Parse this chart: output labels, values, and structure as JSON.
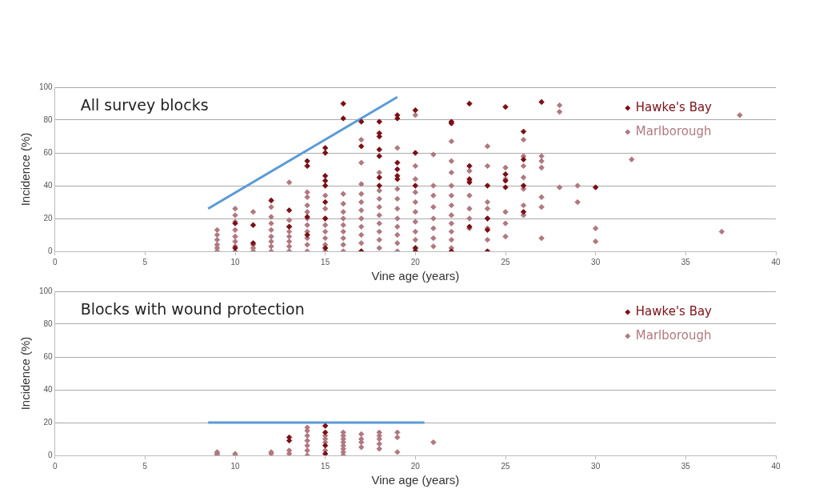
{
  "chart_data": [
    {
      "type": "scatter",
      "title": "All survey blocks",
      "xlabel": "Vine age (years)",
      "ylabel": "Incidence (%)",
      "xlim": [
        0,
        40
      ],
      "xticks": [
        0,
        5,
        10,
        15,
        20,
        25,
        30,
        35,
        40
      ],
      "ylim": [
        0,
        100
      ],
      "yticks": [
        0,
        20,
        40,
        60,
        80,
        100
      ],
      "grid": "y",
      "legend": "top right",
      "marker": "diamond",
      "series": [
        {
          "name": "Hawke's Bay",
          "color": "#7b1016",
          "x": [
            10,
            10,
            11,
            11,
            12,
            13,
            13,
            14,
            14,
            14,
            14,
            15,
            15,
            15,
            15,
            15,
            15,
            15,
            15,
            16,
            16,
            17,
            17,
            17,
            18,
            18,
            18,
            18,
            18,
            18,
            18,
            19,
            19,
            19,
            19,
            19,
            19,
            20,
            20,
            20,
            20,
            20,
            22,
            22,
            22,
            23,
            23,
            23,
            23,
            23,
            24,
            24,
            24,
            24,
            25,
            25,
            25,
            25,
            26,
            26,
            26,
            26,
            27,
            30
          ],
          "values": [
            17,
            2,
            16,
            5,
            31,
            25,
            15,
            55,
            52,
            21,
            10,
            63,
            60,
            46,
            43,
            40,
            30,
            20,
            2,
            90,
            81,
            79,
            64,
            0,
            79,
            72,
            70,
            62,
            58,
            45,
            40,
            83,
            81,
            54,
            50,
            46,
            44,
            86,
            60,
            40,
            2,
            0,
            79,
            78,
            0,
            90,
            52,
            44,
            42,
            15,
            40,
            20,
            13,
            0,
            88,
            47,
            43,
            39,
            73,
            56,
            40,
            24,
            91,
            39
          ]
        },
        {
          "name": "Marlborough",
          "color": "#b07880",
          "x": [
            9,
            9,
            9,
            9,
            9,
            9,
            10,
            10,
            10,
            10,
            10,
            10,
            10,
            10,
            11,
            11,
            11,
            11,
            12,
            12,
            12,
            12,
            12,
            12,
            12,
            12,
            13,
            13,
            13,
            13,
            13,
            13,
            13,
            13,
            14,
            14,
            14,
            14,
            14,
            14,
            14,
            14,
            14,
            14,
            15,
            15,
            15,
            15,
            15,
            15,
            15,
            15,
            16,
            16,
            16,
            16,
            16,
            16,
            16,
            16,
            16,
            17,
            17,
            17,
            17,
            17,
            17,
            17,
            17,
            17,
            17,
            17,
            18,
            18,
            18,
            18,
            18,
            18,
            18,
            18,
            18,
            19,
            19,
            19,
            19,
            19,
            19,
            19,
            19,
            19,
            20,
            20,
            20,
            20,
            20,
            20,
            20,
            20,
            20,
            20,
            21,
            21,
            21,
            21,
            21,
            21,
            21,
            21,
            22,
            22,
            22,
            22,
            22,
            22,
            22,
            22,
            22,
            22,
            22,
            23,
            23,
            23,
            23,
            23,
            23,
            24,
            24,
            24,
            24,
            24,
            24,
            24,
            25,
            25,
            25,
            25,
            25,
            26,
            26,
            26,
            26,
            26,
            26,
            26,
            27,
            27,
            27,
            27,
            27,
            27,
            28,
            28,
            28,
            29,
            29,
            30,
            30,
            32,
            37,
            38
          ],
          "values": [
            0,
            2,
            4,
            7,
            10,
            13,
            0,
            3,
            6,
            9,
            13,
            18,
            22,
            26,
            0,
            2,
            4,
            24,
            0,
            3,
            6,
            9,
            13,
            17,
            21,
            27,
            0,
            3,
            6,
            9,
            12,
            15,
            19,
            42,
            0,
            4,
            8,
            12,
            16,
            20,
            24,
            28,
            33,
            36,
            0,
            4,
            8,
            12,
            16,
            20,
            26,
            34,
            0,
            4,
            8,
            12,
            16,
            20,
            24,
            29,
            35,
            0,
            5,
            10,
            15,
            20,
            25,
            30,
            35,
            41,
            54,
            68,
            2,
            7,
            12,
            17,
            22,
            27,
            32,
            37,
            48,
            0,
            5,
            10,
            15,
            20,
            26,
            32,
            38,
            63,
            2,
            7,
            12,
            18,
            24,
            30,
            36,
            44,
            52,
            83,
            3,
            8,
            14,
            20,
            27,
            34,
            40,
            59,
            2,
            7,
            12,
            17,
            22,
            28,
            34,
            40,
            48,
            55,
            67,
            14,
            20,
            26,
            34,
            43,
            49,
            7,
            14,
            20,
            26,
            30,
            52,
            64,
            9,
            17,
            24,
            44,
            51,
            22,
            28,
            38,
            45,
            52,
            58,
            68,
            8,
            27,
            33,
            51,
            55,
            58,
            39,
            85,
            89,
            30,
            40,
            6,
            14,
            56,
            12,
            83
          ]
        },
        {
          "type": "line",
          "color": "#5b9bd5",
          "marker": "none",
          "x": [
            8.5,
            19
          ],
          "values": [
            26,
            94
          ]
        }
      ]
    },
    {
      "type": "scatter",
      "title": "Blocks with wound protection",
      "xlabel": "Vine age (years)",
      "ylabel": "Incidence (%)",
      "xlim": [
        0,
        40
      ],
      "xticks": [
        0,
        5,
        10,
        15,
        20,
        25,
        30,
        35,
        40
      ],
      "ylim": [
        0,
        100
      ],
      "yticks": [
        0,
        20,
        40,
        60,
        80,
        100
      ],
      "grid": "y",
      "legend": "top right",
      "marker": "diamond",
      "series": [
        {
          "name": "Hawke's Bay",
          "color": "#7b1016",
          "x": [
            13,
            13,
            15,
            15,
            15,
            15
          ],
          "values": [
            11,
            9,
            18,
            14,
            6,
            1
          ]
        },
        {
          "name": "Marlborough",
          "color": "#b07880",
          "x": [
            9,
            9,
            9,
            10,
            10,
            12,
            12,
            13,
            13,
            14,
            14,
            14,
            14,
            14,
            14,
            14,
            15,
            15,
            15,
            15,
            16,
            16,
            16,
            16,
            16,
            16,
            16,
            16,
            17,
            17,
            17,
            17,
            18,
            18,
            18,
            18,
            18,
            19,
            19,
            19,
            21
          ],
          "values": [
            0,
            1,
            2,
            0,
            1,
            1,
            2,
            1,
            3,
            0,
            3,
            6,
            9,
            12,
            15,
            17,
            3,
            8,
            10,
            12,
            0,
            2,
            4,
            6,
            8,
            10,
            12,
            14,
            5,
            8,
            10,
            13,
            4,
            7,
            10,
            12,
            14,
            2,
            11,
            14,
            8
          ]
        },
        {
          "type": "line",
          "color": "#5b9bd5",
          "marker": "none",
          "x": [
            8.5,
            20.5
          ],
          "values": [
            20,
            20
          ]
        }
      ]
    }
  ]
}
